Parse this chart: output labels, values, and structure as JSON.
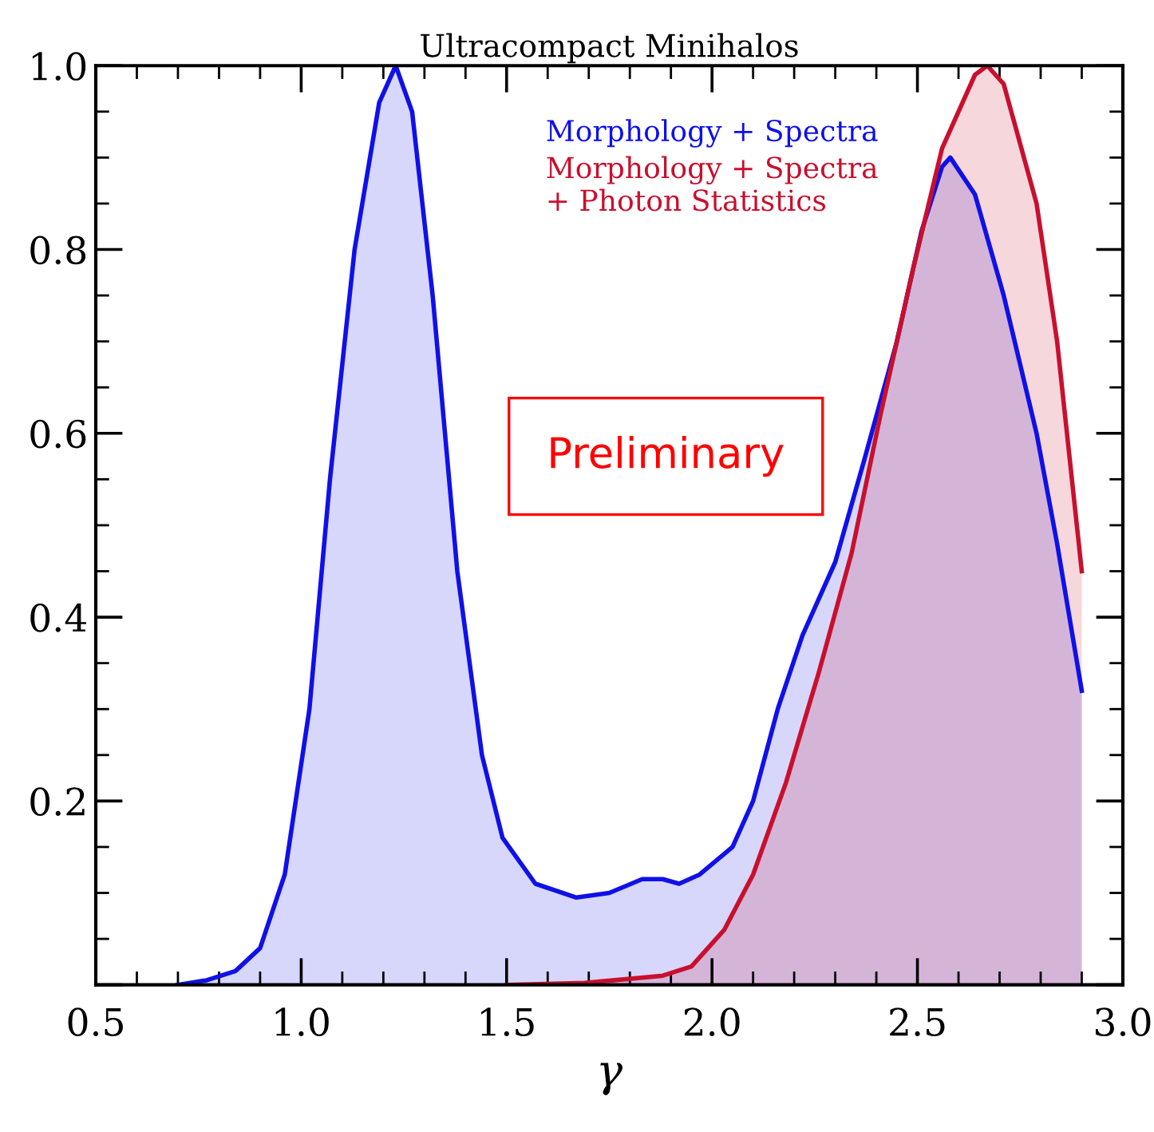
{
  "chart_data": {
    "type": "area",
    "title": "Ultracompact Minihalos",
    "xlabel": "γ",
    "xlim": [
      0.5,
      3.0
    ],
    "xticks": [
      {
        "value": 0.5,
        "label": "0.5"
      },
      {
        "value": 1.0,
        "label": "1.0"
      },
      {
        "value": 1.5,
        "label": "1.5"
      },
      {
        "value": 2.0,
        "label": "2.0"
      },
      {
        "value": 2.5,
        "label": "2.5"
      },
      {
        "value": 3.0,
        "label": "3.0"
      }
    ],
    "ylim": [
      0,
      1.0
    ],
    "yticks": [
      {
        "value": 0,
        "label": null
      },
      0.2,
      0.4,
      0.6,
      0.8,
      {
        "value": 1.0,
        "label": "1.0"
      }
    ],
    "legend": "top",
    "grid": false,
    "annotations": [
      "Preliminary"
    ],
    "series": [
      {
        "name": "Morphology + Spectra",
        "color": "#1010e8",
        "x": [
          0.7,
          0.77,
          0.84,
          0.9,
          0.96,
          1.02,
          1.07,
          1.13,
          1.19,
          1.23,
          1.27,
          1.32,
          1.38,
          1.44,
          1.49,
          1.57,
          1.67,
          1.75,
          1.83,
          1.88,
          1.92,
          1.97,
          2.05,
          2.1,
          2.16,
          2.22,
          2.3,
          2.37,
          2.45,
          2.51,
          2.56,
          2.58,
          2.64,
          2.71,
          2.79,
          2.84,
          2.9
        ],
        "values": [
          0,
          0.005,
          0.015,
          0.04,
          0.12,
          0.3,
          0.55,
          0.8,
          0.96,
          1.0,
          0.95,
          0.75,
          0.45,
          0.25,
          0.16,
          0.11,
          0.095,
          0.1,
          0.115,
          0.115,
          0.11,
          0.12,
          0.15,
          0.2,
          0.3,
          0.38,
          0.46,
          0.57,
          0.7,
          0.82,
          0.89,
          0.9,
          0.86,
          0.75,
          0.6,
          0.48,
          0.32
        ]
      },
      {
        "name": "Morphology + Spectra\n+ Photon Statistics",
        "color": "#c8102e",
        "x": [
          1.5,
          1.69,
          1.88,
          1.95,
          2.03,
          2.1,
          2.18,
          2.26,
          2.34,
          2.41,
          2.49,
          2.56,
          2.64,
          2.67,
          2.71,
          2.79,
          2.84,
          2.9
        ],
        "values": [
          0,
          0.002,
          0.01,
          0.02,
          0.06,
          0.12,
          0.22,
          0.34,
          0.47,
          0.62,
          0.78,
          0.91,
          0.99,
          1.0,
          0.98,
          0.85,
          0.7,
          0.45
        ]
      }
    ]
  }
}
